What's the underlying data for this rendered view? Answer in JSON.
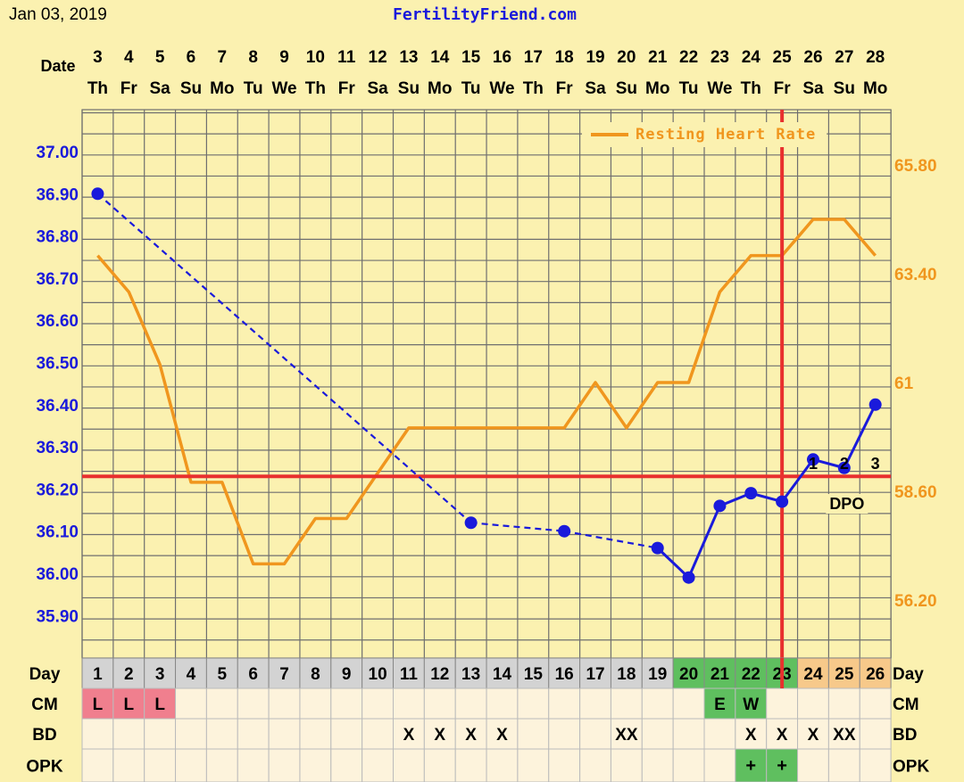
{
  "header": {
    "date": "Jan 03, 2019",
    "site": "FertilityFriend.com"
  },
  "row_labels": {
    "date": "Date",
    "day": "Day",
    "cm": "CM",
    "bd": "BD",
    "opk": "OPK",
    "dpo": "DPO"
  },
  "colors": {
    "bbt": "#1a1adb",
    "rhr": "#f0961e",
    "coverline": "#e8302e",
    "ovulation": "#e8302e",
    "grid": "#6f6f6f",
    "bg": "#fbf1b0",
    "day_cell": "#d3d3d3",
    "fertile_cell": "#5fbf5f",
    "luteal_cell": "#f7c98a",
    "cm_lh": "#f07f8e",
    "table_cell": "#fdf3dc"
  },
  "chart_data": {
    "type": "line",
    "dates": [
      "3",
      "4",
      "5",
      "6",
      "7",
      "8",
      "9",
      "10",
      "11",
      "12",
      "13",
      "14",
      "15",
      "16",
      "17",
      "18",
      "19",
      "20",
      "21",
      "22",
      "23",
      "24",
      "25",
      "26",
      "27",
      "28"
    ],
    "weekdays": [
      "Th",
      "Fr",
      "Sa",
      "Su",
      "Mo",
      "Tu",
      "We",
      "Th",
      "Fr",
      "Sa",
      "Su",
      "Mo",
      "Tu",
      "We",
      "Th",
      "Fr",
      "Sa",
      "Su",
      "Mo",
      "Tu",
      "We",
      "Th",
      "Fr",
      "Sa",
      "Su",
      "Mo"
    ],
    "cycle_days": [
      "1",
      "2",
      "3",
      "4",
      "5",
      "6",
      "7",
      "8",
      "9",
      "10",
      "11",
      "12",
      "13",
      "14",
      "15",
      "16",
      "17",
      "18",
      "19",
      "20",
      "21",
      "22",
      "23",
      "24",
      "25",
      "26"
    ],
    "y_left": {
      "ticks": [
        "37.00",
        "36.90",
        "36.80",
        "36.70",
        "36.60",
        "36.50",
        "36.40",
        "36.30",
        "36.20",
        "36.10",
        "36.00",
        "35.90"
      ],
      "range": [
        35.82,
        37.05
      ]
    },
    "y_right": {
      "ticks": [
        "65.80",
        "63.40",
        "61",
        "58.60",
        "56.20"
      ],
      "range": [
        55.44,
        66.78
      ]
    },
    "bbt": {
      "points": [
        {
          "day": 1,
          "value": 36.9
        },
        {
          "day": 13,
          "value": 36.12
        },
        {
          "day": 16,
          "value": 36.1
        },
        {
          "day": 19,
          "value": 36.06
        },
        {
          "day": 20,
          "value": 35.99
        },
        {
          "day": 21,
          "value": 36.16
        },
        {
          "day": 22,
          "value": 36.19
        },
        {
          "day": 23,
          "value": 36.17
        },
        {
          "day": 24,
          "value": 36.27
        },
        {
          "day": 25,
          "value": 36.25
        },
        {
          "day": 26,
          "value": 36.4
        }
      ],
      "dashed_until_day": 19
    },
    "rhr": {
      "name": "Resting Heart Rate",
      "values": [
        63.8,
        63.0,
        61.4,
        58.8,
        58.8,
        57.0,
        57.0,
        58.0,
        58.0,
        59.0,
        60.0,
        60.0,
        60.0,
        60.0,
        60.0,
        60.0,
        61.0,
        60.0,
        61.0,
        61.0,
        63.0,
        63.8,
        63.8,
        64.6,
        64.6,
        63.8
      ]
    },
    "coverline": 36.23,
    "ovulation_day": 23,
    "dpo_labels": [
      "1",
      "2",
      "3"
    ],
    "legend_position": "top-right"
  },
  "table": {
    "cm": [
      "L",
      "L",
      "L",
      "",
      "",
      "",
      "",
      "",
      "",
      "",
      "",
      "",
      "",
      "",
      "",
      "",
      "",
      "",
      "",
      "",
      "E",
      "W",
      "",
      "",
      "",
      ""
    ],
    "bd": [
      "",
      "",
      "",
      "",
      "",
      "",
      "",
      "",
      "",
      "",
      "X",
      "X",
      "X",
      "X",
      "",
      "",
      "",
      "XX",
      "",
      "",
      "",
      "X",
      "X",
      "X",
      "XX",
      ""
    ],
    "opk": [
      "",
      "",
      "",
      "",
      "",
      "",
      "",
      "",
      "",
      "",
      "",
      "",
      "",
      "",
      "",
      "",
      "",
      "",
      "",
      "",
      "",
      "+",
      "+",
      "",
      "",
      ""
    ]
  }
}
